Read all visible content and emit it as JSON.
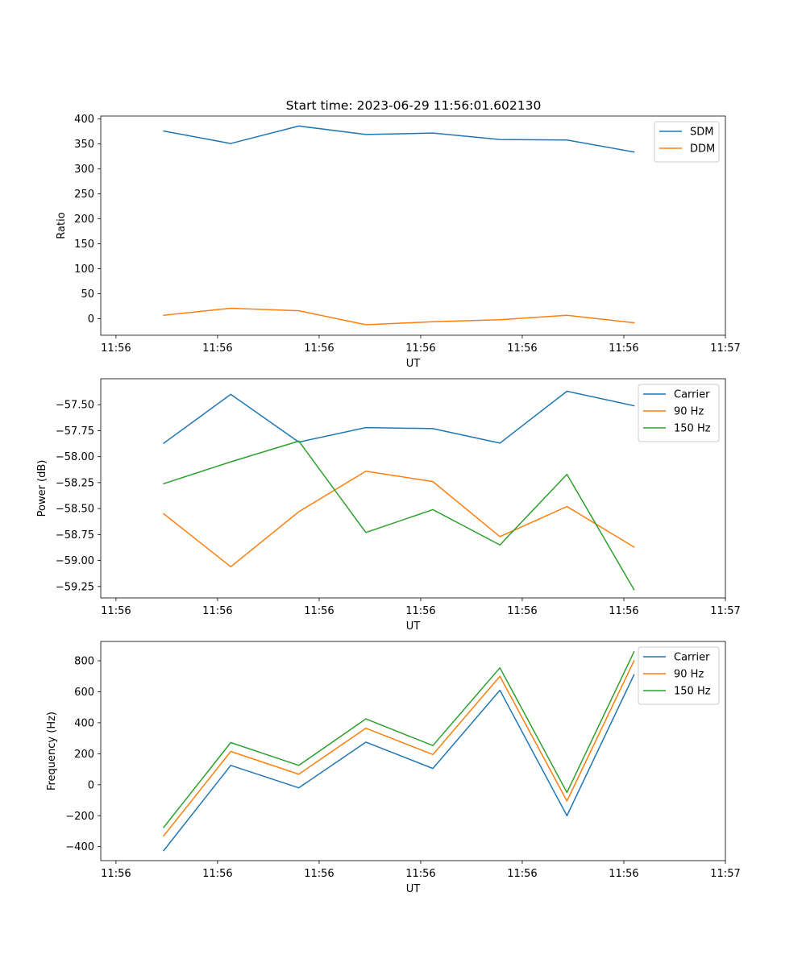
{
  "figure": {
    "title": "Start time: 2023-06-29 11:56:01.602130"
  },
  "chart_data": [
    {
      "type": "line",
      "title": "Start time: 2023-06-29 11:56:01.602130",
      "xlabel": "UT",
      "ylabel": "Ratio",
      "x_tick_labels": [
        "11:56",
        "11:56",
        "11:56",
        "11:56",
        "11:56",
        "11:56",
        "11:57"
      ],
      "xlim": [
        -0.15,
        6.0
      ],
      "ylim": [
        -33,
        406
      ],
      "y_ticks": [
        0,
        50,
        100,
        150,
        200,
        250,
        300,
        350,
        400
      ],
      "x": [
        0.47,
        1.13,
        1.8,
        2.46,
        3.12,
        3.78,
        4.44,
        5.1
      ],
      "series": [
        {
          "name": "SDM",
          "color": "#1f77b4",
          "values": [
            376,
            351,
            386,
            369,
            372,
            359,
            358,
            334
          ]
        },
        {
          "name": "DDM",
          "color": "#ff7f0e",
          "values": [
            7,
            21,
            16,
            -12,
            -6,
            -2,
            7,
            -8
          ]
        }
      ],
      "legend": "upper right",
      "grid": false
    },
    {
      "type": "line",
      "xlabel": "UT",
      "ylabel": "Power (dB)",
      "x_tick_labels": [
        "11:56",
        "11:56",
        "11:56",
        "11:56",
        "11:56",
        "11:56",
        "11:57"
      ],
      "xlim": [
        -0.15,
        6.0
      ],
      "ylim": [
        -59.36,
        -57.25
      ],
      "y_ticks": [
        -59.25,
        -59.0,
        -58.75,
        -58.5,
        -58.25,
        -58.0,
        -57.75,
        -57.5
      ],
      "y_tick_labels": [
        "−59.25",
        "−59.00",
        "−58.75",
        "−58.50",
        "−58.25",
        "−58.00",
        "−57.75",
        "−57.50"
      ],
      "x": [
        0.47,
        1.13,
        1.8,
        2.46,
        3.12,
        3.78,
        4.44,
        5.1
      ],
      "series": [
        {
          "name": "Carrier",
          "color": "#1f77b4",
          "values": [
            -57.87,
            -57.4,
            -57.86,
            -57.72,
            -57.73,
            -57.87,
            -57.37,
            -57.51
          ]
        },
        {
          "name": "90 Hz",
          "color": "#ff7f0e",
          "values": [
            -58.55,
            -59.06,
            -58.53,
            -58.14,
            -58.24,
            -58.77,
            -58.48,
            -58.87
          ]
        },
        {
          "name": "150 Hz",
          "color": "#2ca02c",
          "values": [
            -58.26,
            -58.05,
            -57.85,
            -58.73,
            -58.51,
            -58.85,
            -58.17,
            -59.28
          ]
        }
      ],
      "legend": "upper right",
      "grid": false
    },
    {
      "type": "line",
      "xlabel": "UT",
      "ylabel": "Frequency (Hz)",
      "x_tick_labels": [
        "11:56",
        "11:56",
        "11:56",
        "11:56",
        "11:56",
        "11:56",
        "11:57"
      ],
      "xlim": [
        -0.15,
        6.0
      ],
      "ylim": [
        -490,
        925
      ],
      "y_ticks": [
        -400,
        -200,
        0,
        200,
        400,
        600,
        800
      ],
      "y_tick_labels": [
        "−400",
        "−200",
        "0",
        "200",
        "400",
        "600",
        "800"
      ],
      "x": [
        0.47,
        1.13,
        1.8,
        2.46,
        3.12,
        3.78,
        4.44,
        5.1
      ],
      "series": [
        {
          "name": "Carrier",
          "color": "#1f77b4",
          "values": [
            -425,
            125,
            -20,
            275,
            105,
            610,
            -200,
            710
          ]
        },
        {
          "name": "90 Hz",
          "color": "#ff7f0e",
          "values": [
            -330,
            215,
            68,
            365,
            195,
            700,
            -105,
            800
          ]
        },
        {
          "name": "150 Hz",
          "color": "#2ca02c",
          "values": [
            -275,
            272,
            125,
            425,
            253,
            755,
            -50,
            858
          ]
        }
      ],
      "legend": "upper right",
      "grid": false
    }
  ]
}
